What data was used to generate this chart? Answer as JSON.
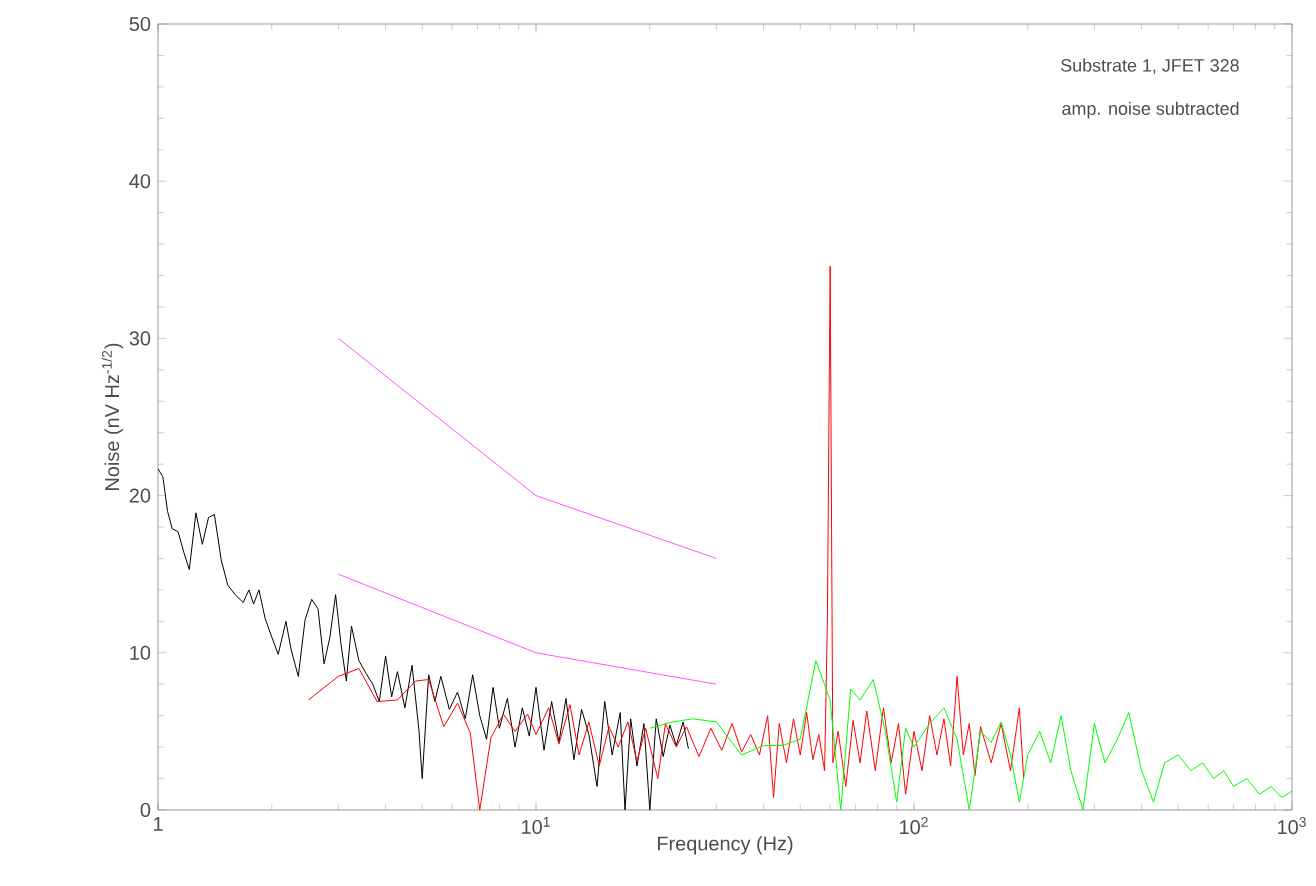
{
  "chart_data": {
    "type": "line",
    "xlabel": "Frequency (Hz)",
    "ylabel": "Noise (nV Hz$^{-1/2}$)",
    "annotations": [
      "Substrate 1, JFET 328",
      "amp. noise subtracted"
    ],
    "log": "x",
    "xlim": [
      1,
      1000
    ],
    "ylim": [
      0,
      50
    ],
    "xticks": [
      1,
      {
        "value": 10,
        "label": "10$^{1}$"
      },
      {
        "value": 100,
        "label": "10$^{2}$"
      },
      {
        "value": 1000,
        "label": "10$^{3}$"
      }
    ],
    "yticks": [
      0,
      10,
      20,
      30,
      40,
      50
    ],
    "grid": false,
    "marker": "none",
    "line_style": "solid",
    "series": [
      {
        "color": "#000000",
        "x": [
          1.0,
          1.03,
          1.06,
          1.09,
          1.13,
          1.17,
          1.21,
          1.26,
          1.31,
          1.36,
          1.41,
          1.47,
          1.53,
          1.6,
          1.68,
          1.74,
          1.79,
          1.85,
          1.92,
          2.0,
          2.08,
          2.18,
          2.25,
          2.35,
          2.45,
          2.55,
          2.65,
          2.75,
          2.85,
          2.95,
          3.05,
          3.15,
          3.25,
          3.4,
          3.55,
          3.7,
          3.85,
          4.0,
          4.15,
          4.3,
          4.5,
          4.7,
          4.9,
          5.0,
          5.2,
          5.4,
          5.6,
          5.9,
          6.2,
          6.5,
          6.8,
          7.1,
          7.4,
          7.7,
          8.0,
          8.4,
          8.8,
          9.2,
          9.6,
          10,
          10.5,
          11,
          11.5,
          12,
          12.6,
          13.2,
          13.8,
          14.5,
          15.2,
          15.9,
          16.7,
          17.2,
          17.8,
          18.5,
          19.3,
          20,
          20.8,
          21.7,
          22.6,
          23.5,
          24.5,
          25.3
        ],
        "values": [
          21.7,
          21.2,
          19.0,
          17.9,
          17.7,
          16.4,
          15.3,
          18.9,
          16.9,
          18.6,
          18.8,
          15.9,
          14.3,
          13.7,
          13.2,
          14.0,
          13.1,
          14.0,
          12.2,
          11.0,
          9.9,
          12.0,
          10.2,
          8.5,
          12.1,
          13.4,
          12.8,
          9.3,
          11.0,
          13.7,
          10.5,
          8.2,
          11.7,
          9.5,
          8.7,
          8.0,
          6.9,
          9.8,
          7.2,
          8.8,
          6.5,
          9.2,
          5.1,
          2.0,
          8.6,
          6.9,
          8.5,
          6.4,
          7.5,
          5.8,
          8.6,
          6.0,
          4.5,
          7.8,
          5.2,
          7.1,
          4.0,
          6.5,
          4.7,
          7.8,
          3.8,
          6.9,
          4.3,
          7.1,
          3.2,
          6.4,
          4.8,
          1.5,
          6.9,
          3.5,
          6.2,
          0,
          5.8,
          2.8,
          5.5,
          0,
          5.8,
          3.4,
          5.4,
          4.1,
          5.6,
          3.9
        ]
      },
      {
        "color": "#ff0000",
        "x": [
          2.5,
          3.0,
          3.4,
          3.8,
          4.3,
          4.8,
          5.2,
          5.7,
          6.2,
          6.7,
          7.1,
          7.6,
          8.2,
          8.8,
          9.5,
          10,
          10.8,
          11.5,
          12.3,
          13,
          13.8,
          14.7,
          15.6,
          16.5,
          17.5,
          18.5,
          19.5,
          21,
          22,
          23.5,
          25,
          27,
          29,
          31,
          33,
          35,
          37,
          39,
          41,
          42.5,
          44,
          46,
          48,
          50,
          52,
          54,
          56,
          58,
          59,
          60,
          61,
          63,
          66,
          69,
          72,
          75,
          79,
          83,
          87,
          91,
          95,
          100,
          105,
          110,
          115,
          120,
          125,
          130,
          135,
          140,
          145,
          150,
          160,
          170,
          180,
          190,
          195
        ],
        "values": [
          7.0,
          8.5,
          9.0,
          6.9,
          7.0,
          8.2,
          8.3,
          5.3,
          6.8,
          4.9,
          0,
          4.6,
          6.1,
          5.0,
          6.1,
          4.8,
          6.5,
          4.2,
          6.7,
          3.5,
          5.6,
          2.8,
          5.3,
          4.0,
          5.6,
          3.1,
          5.2,
          2.0,
          5.5,
          4.0,
          5.3,
          3.4,
          5.2,
          3.8,
          5.5,
          3.7,
          4.8,
          3.5,
          6.0,
          0.8,
          5.5,
          3.0,
          5.8,
          3.5,
          6.2,
          3.2,
          4.8,
          2.5,
          12,
          34.6,
          3.0,
          5.0,
          1.5,
          5.7,
          3.0,
          6.3,
          2.5,
          6.5,
          3.0,
          5.5,
          1.0,
          5.0,
          2.5,
          6.0,
          3.5,
          5.8,
          2.8,
          8.5,
          3.5,
          5.5,
          2.2,
          5.3,
          3.0,
          5.5,
          2.5,
          6.5,
          2.0
        ]
      },
      {
        "color": "#00ff00",
        "x": [
          20,
          23,
          26,
          30,
          35,
          40,
          45,
          50,
          55,
          60,
          64,
          68,
          72,
          78,
          84,
          90,
          95,
          100,
          110,
          120,
          130,
          140,
          150,
          160,
          170,
          180,
          190,
          200,
          215,
          230,
          245,
          260,
          280,
          300,
          320,
          345,
          370,
          400,
          430,
          460,
          500,
          540,
          580,
          620,
          660,
          700,
          760,
          820,
          880,
          940,
          1000
        ],
        "values": [
          5.2,
          5.6,
          5.8,
          5.6,
          3.5,
          4.1,
          4.1,
          4.5,
          9.5,
          7.0,
          0,
          7.7,
          7.0,
          8.3,
          5.0,
          0.5,
          5.2,
          4.0,
          5.5,
          6.5,
          4.5,
          0,
          5.0,
          4.3,
          5.6,
          3.5,
          0.5,
          3.5,
          5.0,
          3.0,
          6.0,
          2.5,
          0,
          5.5,
          3.0,
          4.5,
          6.2,
          2.5,
          0.5,
          3.0,
          3.5,
          2.5,
          3.0,
          2.0,
          2.5,
          1.5,
          2.0,
          1.0,
          1.5,
          0.8,
          1.2
        ]
      },
      {
        "color": "#ff55ff",
        "x": [
          3,
          10,
          30
        ],
        "values": [
          30,
          20,
          16
        ]
      },
      {
        "color": "#ff55ff",
        "x": [
          3,
          10,
          30
        ],
        "values": [
          15,
          10,
          8
        ]
      }
    ]
  }
}
